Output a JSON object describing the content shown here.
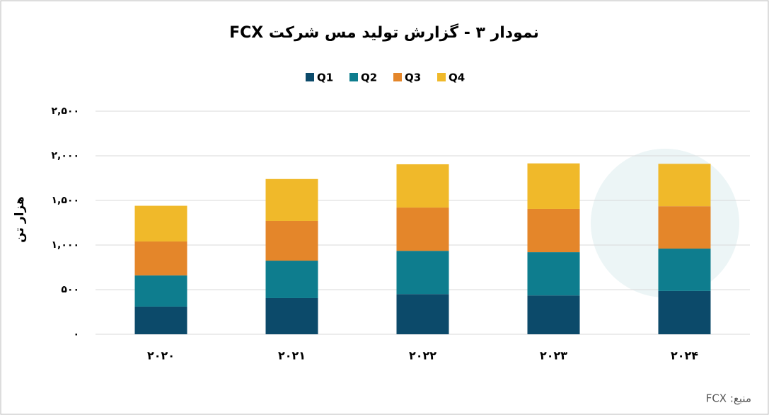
{
  "chart_data": {
    "type": "stacked_bar",
    "title": "نمودار ۳ - گزارش تولید مس شرکت FCX",
    "y_label": "هزار تن",
    "source": "منبع: FCX",
    "categories": [
      "۲۰۲۰",
      "۲۰۲۱",
      "۲۰۲۲",
      "۲۰۲۳",
      "۲۰۲۴"
    ],
    "series": [
      {
        "name": "Q1",
        "color": "#0c4a6a",
        "values": [
          310,
          405,
          450,
          435,
          485
        ]
      },
      {
        "name": "Q2",
        "color": "#0e7d8e",
        "values": [
          350,
          420,
          485,
          485,
          475
        ]
      },
      {
        "name": "Q3",
        "color": "#e4862a",
        "values": [
          380,
          445,
          485,
          485,
          475
        ]
      },
      {
        "name": "Q4",
        "color": "#f0b92a",
        "values": [
          400,
          470,
          485,
          510,
          475
        ]
      }
    ],
    "ylim": [
      0,
      2500
    ],
    "yticks": [
      {
        "value": 0,
        "label": "۰"
      },
      {
        "value": 500,
        "label": "۵۰۰"
      },
      {
        "value": 1000,
        "label": "۱,۰۰۰"
      },
      {
        "value": 1500,
        "label": "۱,۵۰۰"
      },
      {
        "value": 2000,
        "label": "۲,۰۰۰"
      },
      {
        "value": 2500,
        "label": "۲,۵۰۰"
      }
    ],
    "grid": true,
    "legend": "top"
  }
}
